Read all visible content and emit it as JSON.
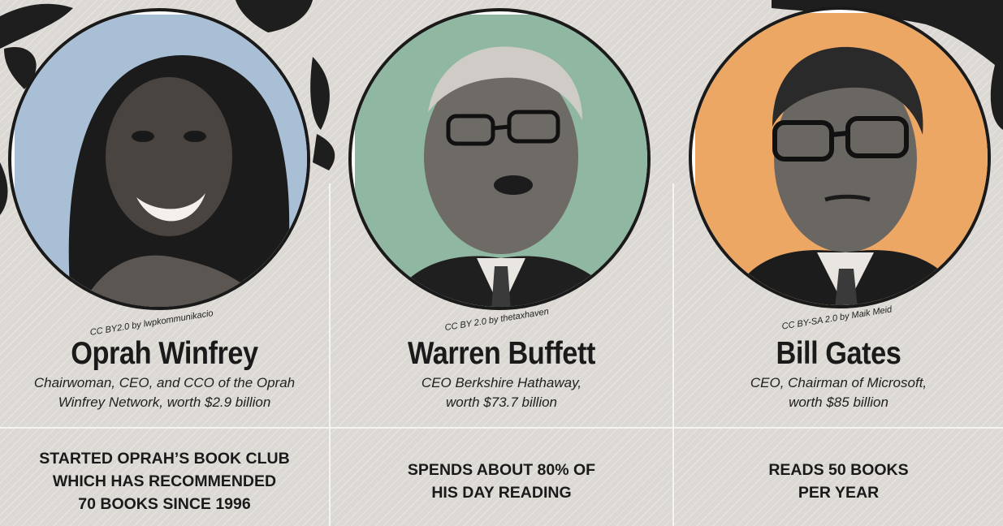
{
  "people": [
    {
      "name": "Oprah Winfrey",
      "credit": "CC BY2.0 by lwpkommunikacio",
      "desc_line1": "Chairwoman, CEO, and CCO of the Oprah",
      "desc_line2": "Winfrey Network, worth $2.9 billion",
      "fact_line1": "STARTED OPRAH’S BOOK CLUB",
      "fact_line2": "WHICH HAS RECOMMENDED",
      "fact_line3": "70 BOOKS SINCE 1996",
      "bg_color": "#a8bfd6",
      "portrait_icon": "oprah-winfrey-portrait"
    },
    {
      "name": "Warren Buffett",
      "credit": "CC BY 2.0 by thetaxhaven",
      "desc_line1": "CEO Berkshire Hathaway,",
      "desc_line2": "worth $73.7 billion",
      "fact_line1": "SPENDS ABOUT 80% OF",
      "fact_line2": "HIS DAY READING",
      "fact_line3": "",
      "bg_color": "#8fb7a1",
      "portrait_icon": "warren-buffett-portrait"
    },
    {
      "name": "Bill Gates",
      "credit": "CC BY-SA 2.0 by Maik Meid",
      "desc_line1": "CEO, Chairman of Microsoft,",
      "desc_line2": "worth $85 billion",
      "fact_line1": "READS 50 BOOKS",
      "fact_line2": "PER YEAR",
      "fact_line3": "",
      "bg_color": "#eda765",
      "portrait_icon": "bill-gates-portrait"
    }
  ]
}
